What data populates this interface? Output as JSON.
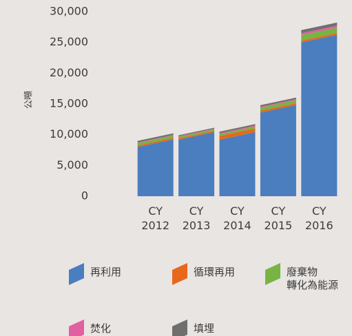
{
  "chart_data": {
    "type": "stacked_bar",
    "y_label": "公噸",
    "categories": [
      "CY\n2012",
      "CY\n2013",
      "CY\n2014",
      "CY\n2015",
      "CY\n2016"
    ],
    "series": [
      {
        "name": "再利用",
        "color": "#4a7ebf",
        "values": [
          8000,
          9200,
          9200,
          13600,
          25000
        ]
      },
      {
        "name": "循環再用",
        "color": "#e8671c",
        "values": [
          250,
          200,
          600,
          300,
          300
        ]
      },
      {
        "name": "廢棄物\n轉化為能源",
        "color": "#77b443",
        "values": [
          400,
          250,
          300,
          500,
          900
        ]
      },
      {
        "name": "焚化",
        "color": "#e060a0",
        "values": [
          100,
          100,
          150,
          150,
          300
        ]
      },
      {
        "name": "填埋",
        "color": "#6f6f6f",
        "values": [
          250,
          150,
          250,
          250,
          500
        ]
      }
    ],
    "ylim": [
      0,
      30000
    ],
    "yticks": [
      {
        "value": 0,
        "label": "0"
      },
      {
        "value": 5000,
        "label": "5,000"
      },
      {
        "value": 10000,
        "label": "10,000"
      },
      {
        "value": 15000,
        "label": "15,000"
      },
      {
        "value": 20000,
        "label": "20,000"
      },
      {
        "value": 25000,
        "label": "25,000"
      },
      {
        "value": 30000,
        "label": "30,000"
      }
    ]
  }
}
